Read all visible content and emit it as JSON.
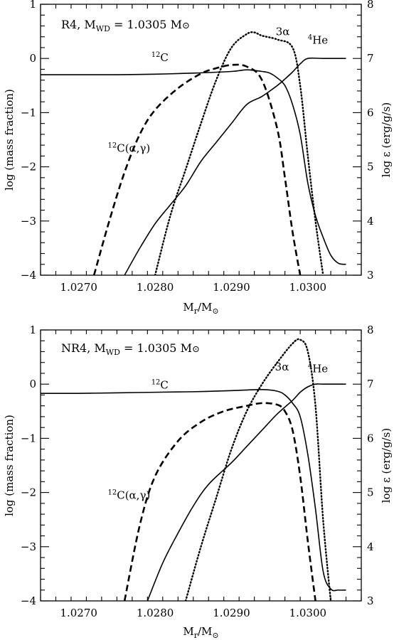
{
  "chart_data": [
    {
      "type": "line",
      "panel_label": "R4, M",
      "panel_label_sub": "WD",
      "panel_label_eq": " = 1.0305 M",
      "panel_label_sun": "⊙",
      "xlabel": "M",
      "xlabel_sub": "r",
      "xlabel_den": "/M",
      "xlabel_sun": "⊙",
      "ylabel": "log (mass fraction)",
      "ylabel2": "log ε (erg/g/s)",
      "xlim": [
        1.0265,
        1.0307
      ],
      "ylim": [
        -4,
        1
      ],
      "ylim2": [
        3,
        8
      ],
      "xticks": [
        "1.0270",
        "1.0280",
        "1.0290",
        "1.0300"
      ],
      "xtick_values": [
        1.027,
        1.028,
        1.029,
        1.03
      ],
      "yticks": [
        "−4",
        "−3",
        "−2",
        "−1",
        "0",
        "1"
      ],
      "ytick_values": [
        -4,
        -3,
        -2,
        -1,
        0,
        1
      ],
      "yticks2": [
        "3",
        "4",
        "5",
        "6",
        "7",
        "8"
      ],
      "ytick2_values": [
        3,
        4,
        5,
        6,
        7,
        8
      ],
      "series": [
        {
          "name": "12C",
          "label_sup": "12",
          "label_main": "C",
          "style": "solid",
          "axis": "left",
          "x": [
            1.0265,
            1.027,
            1.0275,
            1.028,
            1.0285,
            1.029,
            1.0292,
            1.0294,
            1.0295,
            1.0296,
            1.0297,
            1.0298,
            1.0299,
            1.03,
            1.0301,
            1.0302,
            1.0303,
            1.0304,
            1.0305
          ],
          "y": [
            -0.3,
            -0.3,
            -0.3,
            -0.29,
            -0.27,
            -0.24,
            -0.21,
            -0.24,
            -0.27,
            -0.36,
            -0.5,
            -0.85,
            -1.4,
            -2.3,
            -2.9,
            -3.3,
            -3.63,
            -3.78,
            -3.8
          ]
        },
        {
          "name": "4He",
          "label_sup": "4",
          "label_main": "He",
          "style": "solid",
          "axis": "left",
          "x": [
            1.0276,
            1.0278,
            1.028,
            1.0282,
            1.0284,
            1.0286,
            1.0288,
            1.029,
            1.0292,
            1.0294,
            1.0296,
            1.0297,
            1.0298,
            1.0299,
            1.03,
            1.0302,
            1.0305
          ],
          "y": [
            -4,
            -3.5,
            -3.05,
            -2.7,
            -2.35,
            -1.9,
            -1.55,
            -1.2,
            -0.85,
            -0.7,
            -0.5,
            -0.38,
            -0.25,
            -0.1,
            0,
            0,
            0
          ]
        },
        {
          "name": "3α",
          "label_sup": "",
          "label_main": "3α",
          "style": "dotted",
          "axis": "right",
          "x": [
            1.028,
            1.0282,
            1.0284,
            1.0286,
            1.0288,
            1.029,
            1.0292,
            1.0293,
            1.0294,
            1.0296,
            1.0298,
            1.0299,
            1.03,
            1.0301,
            1.0302
          ],
          "y": [
            3,
            4.1,
            4.95,
            5.8,
            6.6,
            7.2,
            7.45,
            7.48,
            7.42,
            7.35,
            7.2,
            6.5,
            5.2,
            4,
            3
          ]
        },
        {
          "name": "12C(α,γ)",
          "label_sup": "12",
          "label_main": "C(α,γ)",
          "style": "dashed",
          "axis": "right",
          "x": [
            1.0272,
            1.0274,
            1.0276,
            1.0278,
            1.028,
            1.0283,
            1.0286,
            1.0288,
            1.029,
            1.0292,
            1.0294,
            1.0296,
            1.0297,
            1.0298,
            1.0299
          ],
          "y": [
            3,
            4,
            4.9,
            5.6,
            6.05,
            6.45,
            6.72,
            6.82,
            6.88,
            6.85,
            6.6,
            5.7,
            4.8,
            3.8,
            3
          ]
        }
      ],
      "annotations": [
        {
          "ref": "12C",
          "x": 1.02795,
          "y": -0.05
        },
        {
          "ref": "4He",
          "x": 1.03,
          "y": 0.27
        },
        {
          "ref": "3α",
          "x": 1.02958,
          "y": 0.43
        },
        {
          "ref": "12C(α,γ)",
          "x": 1.02738,
          "y": -1.72
        }
      ]
    },
    {
      "type": "line",
      "panel_label": "NR4, M",
      "panel_label_sub": "WD",
      "panel_label_eq": " = 1.0305 M",
      "panel_label_sun": "⊙",
      "xlabel": "M",
      "xlabel_sub": "r",
      "xlabel_den": "/M",
      "xlabel_sun": "⊙",
      "ylabel": "log (mass fraction)",
      "ylabel2": "log ε (erg/g/s)",
      "xlim": [
        1.0265,
        1.0307
      ],
      "ylim": [
        -4,
        1
      ],
      "ylim2": [
        3,
        8
      ],
      "xticks": [
        "1.0270",
        "1.0280",
        "1.0290",
        "1.0300"
      ],
      "xtick_values": [
        1.027,
        1.028,
        1.029,
        1.03
      ],
      "yticks": [
        "−4",
        "−3",
        "−2",
        "−1",
        "0",
        "1"
      ],
      "ytick_values": [
        -4,
        -3,
        -2,
        -1,
        0,
        1
      ],
      "yticks2": [
        "3",
        "4",
        "5",
        "6",
        "7",
        "8"
      ],
      "ytick2_values": [
        3,
        4,
        5,
        6,
        7,
        8
      ],
      "series": [
        {
          "name": "12C",
          "label_sup": "12",
          "label_main": "C",
          "style": "solid",
          "axis": "left",
          "x": [
            1.0265,
            1.027,
            1.0275,
            1.028,
            1.0285,
            1.029,
            1.0294,
            1.0296,
            1.0297,
            1.0298,
            1.0299,
            1.03,
            1.0301,
            1.0302,
            1.0303,
            1.0304,
            1.0305
          ],
          "y": [
            -0.17,
            -0.17,
            -0.16,
            -0.15,
            -0.14,
            -0.12,
            -0.1,
            -0.13,
            -0.2,
            -0.35,
            -0.6,
            -1.3,
            -2.3,
            -3.45,
            -3.78,
            -3.8,
            -3.8
          ]
        },
        {
          "name": "4He",
          "label_sup": "4",
          "label_main": "He",
          "style": "solid",
          "axis": "left",
          "x": [
            1.0279,
            1.0281,
            1.0283,
            1.0285,
            1.0287,
            1.029,
            1.0292,
            1.0294,
            1.0296,
            1.0298,
            1.0299,
            1.03,
            1.0301,
            1.0302,
            1.0305
          ],
          "y": [
            -4,
            -3.3,
            -2.75,
            -2.25,
            -1.85,
            -1.45,
            -1.15,
            -0.85,
            -0.55,
            -0.3,
            -0.15,
            -0.05,
            0,
            0,
            0
          ]
        },
        {
          "name": "3α",
          "label_sup": "",
          "label_main": "3α",
          "style": "dotted",
          "axis": "right",
          "x": [
            1.0284,
            1.0286,
            1.0288,
            1.029,
            1.0292,
            1.0294,
            1.0296,
            1.0298,
            1.0299,
            1.03,
            1.0301,
            1.0302,
            1.0303
          ],
          "y": [
            3,
            4,
            4.9,
            5.8,
            6.5,
            7,
            7.4,
            7.75,
            7.82,
            7.6,
            6.6,
            4.5,
            3
          ]
        },
        {
          "name": "12C(α,γ)",
          "label_sup": "12",
          "label_main": "C(α,γ)",
          "style": "dashed",
          "axis": "right",
          "x": [
            1.0276,
            1.0278,
            1.028,
            1.0283,
            1.0286,
            1.0289,
            1.0292,
            1.0294,
            1.0296,
            1.0297,
            1.0298,
            1.0299,
            1.03,
            1.0301
          ],
          "y": [
            3,
            4.4,
            5.3,
            5.95,
            6.3,
            6.5,
            6.6,
            6.65,
            6.62,
            6.5,
            6.15,
            5.3,
            4.1,
            3
          ]
        }
      ],
      "annotations": [
        {
          "ref": "12C",
          "x": 1.02795,
          "y": -0.08
        },
        {
          "ref": "4He",
          "x": 1.03,
          "y": 0.22
        },
        {
          "ref": "3α",
          "x": 1.02957,
          "y": 0.25
        },
        {
          "ref": "12C(α,γ)",
          "x": 1.02738,
          "y": -2.12
        }
      ]
    }
  ]
}
